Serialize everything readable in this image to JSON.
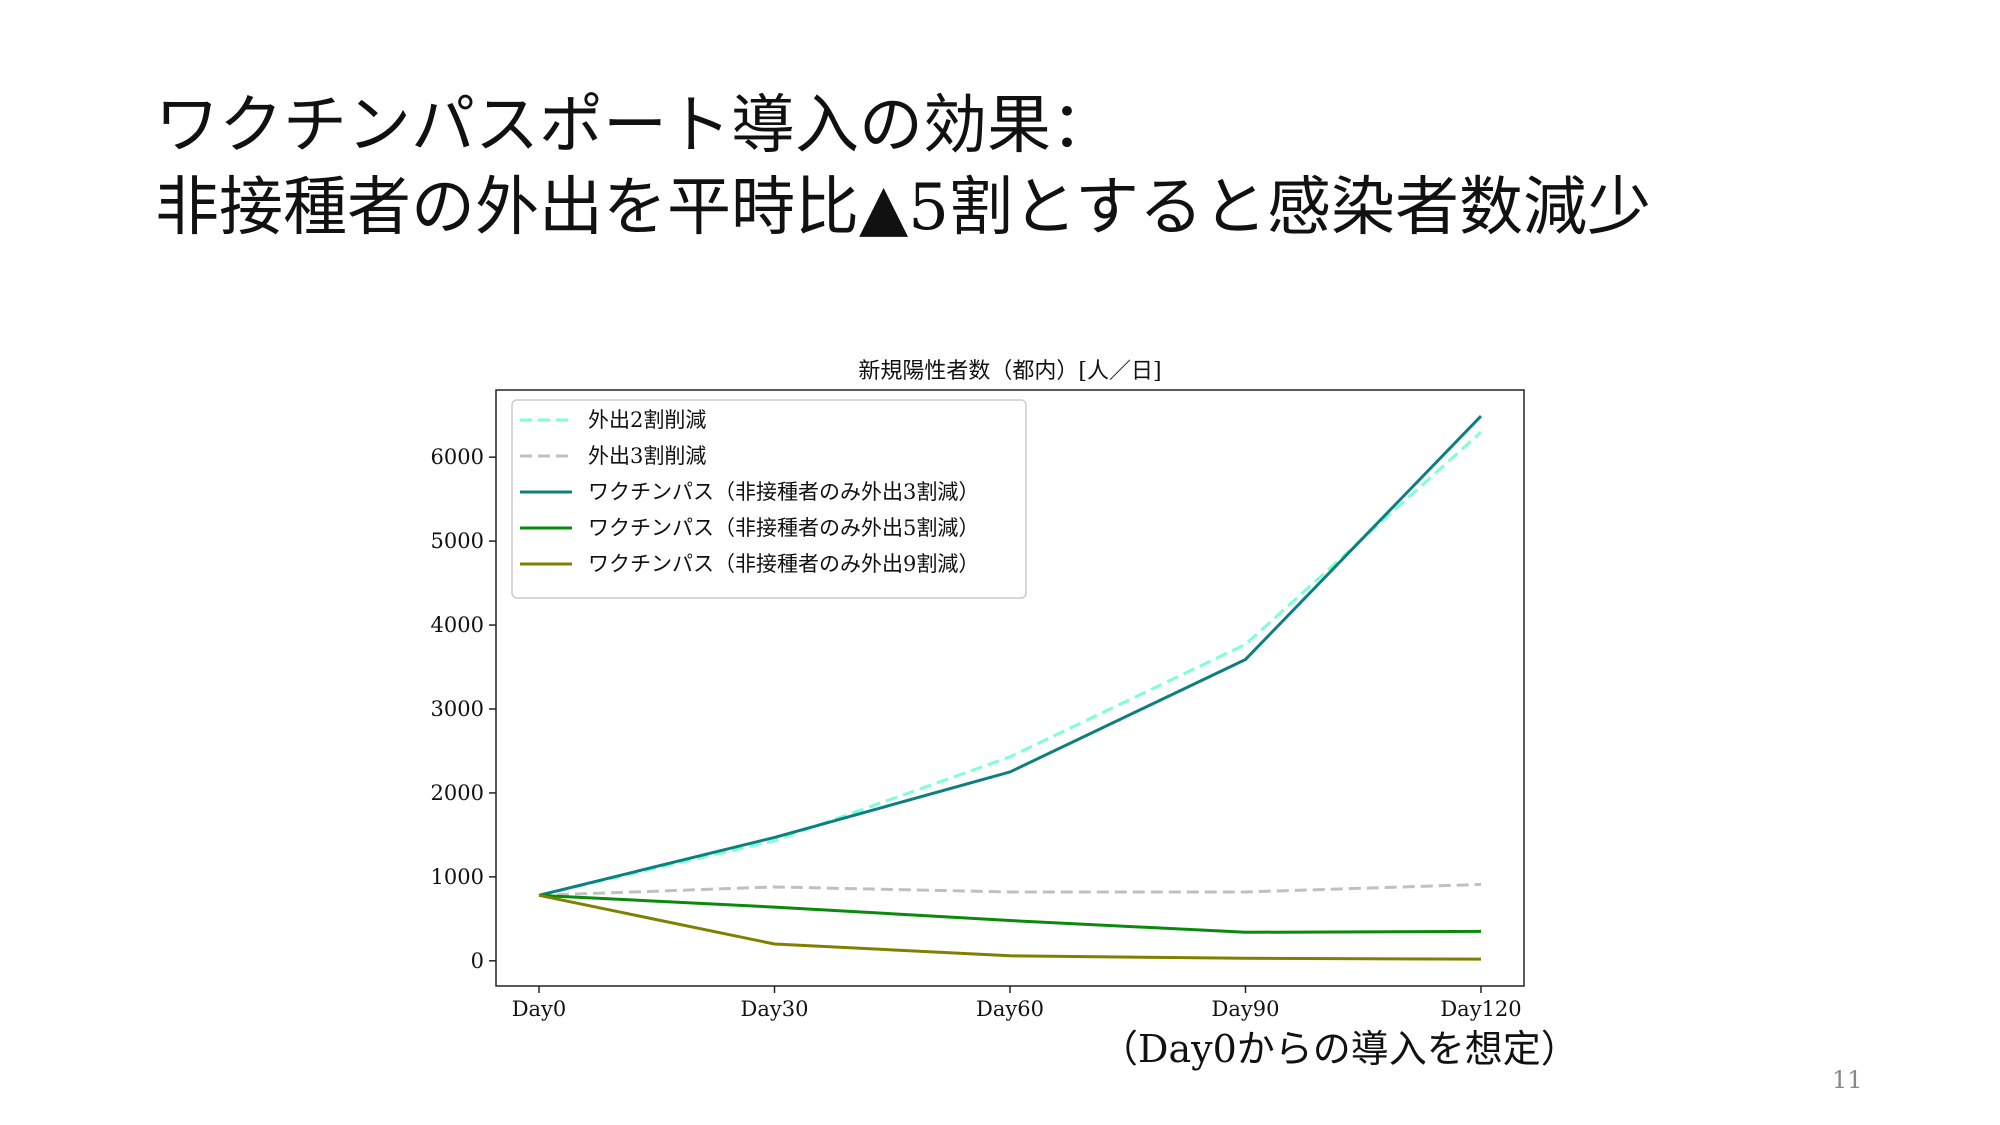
{
  "slide": {
    "title_line1": "ワクチンパスポート導入の効果：",
    "title_line2": "非接種者の外出を平時比▲5割とすると感染者数減少",
    "footnote": "（Day0からの導入を想定）",
    "page_number": "11"
  },
  "chart_data": {
    "type": "line",
    "title": "新規陽性者数（都内）[人／日]",
    "xlabel": "",
    "ylabel": "",
    "categories": [
      "Day0",
      "Day30",
      "Day60",
      "Day90",
      "Day120"
    ],
    "yticks": [
      0,
      1000,
      2000,
      3000,
      4000,
      5000,
      6000
    ],
    "ylim": [
      -300,
      6800
    ],
    "grid": false,
    "legend_position": "top-left",
    "series": [
      {
        "name": "外出2割削減",
        "values": [
          780,
          1430,
          2430,
          3770,
          6300
        ],
        "color": "#7fffd4",
        "dash": "dashed"
      },
      {
        "name": "外出3割削減",
        "values": [
          780,
          880,
          820,
          820,
          910
        ],
        "color": "#c0c0c0",
        "dash": "dashed"
      },
      {
        "name": "ワクチンパス（非接種者のみ外出3割減）",
        "values": [
          780,
          1470,
          2250,
          3590,
          6490
        ],
        "color": "#0e7f7f",
        "dash": "solid"
      },
      {
        "name": "ワクチンパス（非接種者のみ外出5割減）",
        "values": [
          780,
          640,
          480,
          340,
          350
        ],
        "color": "#0a8a0a",
        "dash": "solid"
      },
      {
        "name": "ワクチンパス（非接種者のみ外出9割減）",
        "values": [
          780,
          200,
          60,
          30,
          20
        ],
        "color": "#808000",
        "dash": "solid"
      }
    ]
  }
}
